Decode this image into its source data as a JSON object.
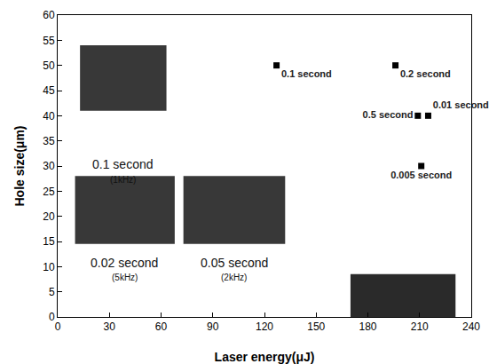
{
  "chart_data": {
    "type": "scatter",
    "x_label": "Laser energy(μJ)",
    "y_label": "Hole size(μm)",
    "x": [
      127,
      196,
      215,
      209,
      211
    ],
    "values": [
      50,
      50,
      40,
      40,
      30
    ],
    "labels": [
      "0.1 second",
      "0.2 second",
      "0.01 second",
      "0.5 second",
      "0.005 second"
    ],
    "color": "#000000",
    "marker": "square",
    "xlim": [
      0,
      240
    ],
    "xticks": [
      0,
      30,
      60,
      90,
      120,
      150,
      180,
      210,
      240
    ],
    "ylim": [
      0,
      60
    ],
    "yticks": [
      0,
      5,
      10,
      15,
      20,
      25,
      30,
      35,
      40,
      45,
      50,
      55,
      60
    ],
    "grid": false,
    "insets": [
      {
        "text": "0.1 second",
        "subtext": "(1kHz)"
      },
      {
        "text": "0.02 second",
        "subtext": "(5kHz)"
      },
      {
        "text": "0.05 second",
        "subtext": "(2kHz)"
      }
    ]
  }
}
